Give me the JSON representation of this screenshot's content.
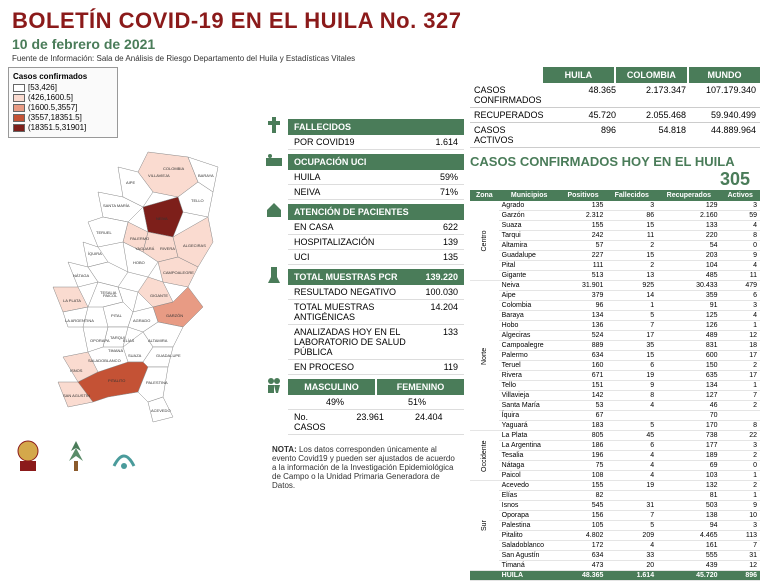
{
  "header": {
    "title": "BOLETÍN COVID-19 EN EL HUILA No. 327",
    "date": "10 de febrero de 2021",
    "source": "Fuente de Información: Sala de Análisis de Riesgo Departamento del Huila y Estadísticas Vitales"
  },
  "legend": {
    "title": "Casos confirmados",
    "items": [
      {
        "label": "[53,426]",
        "color": "#ffffff"
      },
      {
        "label": "(426,1600.5]",
        "color": "#fadbd0"
      },
      {
        "label": "(1600.5,3557]",
        "color": "#e89b84"
      },
      {
        "label": "(3557,18351.5]",
        "color": "#c45235"
      },
      {
        "label": "(18351.5,31901]",
        "color": "#7d1f1a"
      }
    ]
  },
  "top_stats": {
    "headers": [
      "HUILA",
      "COLOMBIA",
      "MUNDO"
    ],
    "rows": [
      {
        "label": "CASOS CONFIRMADOS",
        "vals": [
          "48.365",
          "2.173.347",
          "107.179.340"
        ]
      },
      {
        "label": "RECUPERADOS",
        "vals": [
          "45.720",
          "2.055.468",
          "59.940.499"
        ]
      },
      {
        "label": "CASOS ACTIVOS",
        "vals": [
          "896",
          "54.818",
          "44.889.964"
        ]
      }
    ]
  },
  "confirmed_today": {
    "label": "CASOS CONFIRMADOS HOY EN EL HUILA",
    "value": "305"
  },
  "fallecidos": {
    "header": "FALLECIDOS",
    "rows": [
      {
        "label": "POR COVID19",
        "val": "1.614"
      }
    ]
  },
  "uci": {
    "header": "OCUPACIÓN UCI",
    "rows": [
      {
        "label": "HUILA",
        "val": "59%"
      },
      {
        "label": "NEIVA",
        "val": "71%"
      }
    ]
  },
  "atencion": {
    "header": "ATENCIÓN DE PACIENTES",
    "rows": [
      {
        "label": "EN CASA",
        "val": "622"
      },
      {
        "label": "HOSPITALIZACIÓN",
        "val": "139"
      },
      {
        "label": "UCI",
        "val": "135"
      }
    ]
  },
  "pcr": {
    "header": "TOTAL MUESTRAS PCR",
    "header_val": "139.220",
    "rows": [
      {
        "label": "RESULTADO NEGATIVO",
        "val": "100.030"
      },
      {
        "label": "TOTAL MUESTRAS ANTIGÉNICAS",
        "val": "14.204"
      },
      {
        "label": "ANALIZADAS HOY EN EL LABORATORIO DE SALUD PÚBLICA",
        "val": "133"
      },
      {
        "label": "EN PROCESO",
        "val": "119"
      }
    ]
  },
  "gender": {
    "headers": [
      "MASCULINO",
      "FEMENINO"
    ],
    "pct": [
      "49%",
      "51%"
    ],
    "label": "No. CASOS",
    "vals": [
      "23.961",
      "24.404"
    ]
  },
  "muni": {
    "headers": [
      "Zona",
      "Municipios",
      "Positivos",
      "Fallecidos",
      "Recuperados",
      "Activos"
    ],
    "zones": [
      {
        "name": "Centro",
        "rows": [
          {
            "m": "Agrado",
            "p": "135",
            "f": "3",
            "r": "129",
            "a": "3"
          },
          {
            "m": "Garzón",
            "p": "2.312",
            "f": "86",
            "r": "2.160",
            "a": "59"
          },
          {
            "m": "Suaza",
            "p": "155",
            "f": "15",
            "r": "133",
            "a": "4"
          },
          {
            "m": "Tarqui",
            "p": "242",
            "f": "11",
            "r": "220",
            "a": "8"
          },
          {
            "m": "Altamira",
            "p": "57",
            "f": "2",
            "r": "54",
            "a": "0"
          },
          {
            "m": "Guadalupe",
            "p": "227",
            "f": "15",
            "r": "203",
            "a": "9"
          },
          {
            "m": "Pital",
            "p": "111",
            "f": "2",
            "r": "104",
            "a": "4"
          },
          {
            "m": "Gigante",
            "p": "513",
            "f": "13",
            "r": "485",
            "a": "11"
          }
        ]
      },
      {
        "name": "Norte",
        "rows": [
          {
            "m": "Neiva",
            "p": "31.901",
            "f": "925",
            "r": "30.433",
            "a": "479"
          },
          {
            "m": "Aipe",
            "p": "379",
            "f": "14",
            "r": "359",
            "a": "6"
          },
          {
            "m": "Colombia",
            "p": "96",
            "f": "1",
            "r": "91",
            "a": "3"
          },
          {
            "m": "Baraya",
            "p": "134",
            "f": "5",
            "r": "125",
            "a": "4"
          },
          {
            "m": "Hobo",
            "p": "136",
            "f": "7",
            "r": "126",
            "a": "1"
          },
          {
            "m": "Algeciras",
            "p": "524",
            "f": "17",
            "r": "489",
            "a": "12"
          },
          {
            "m": "Campoalegre",
            "p": "889",
            "f": "35",
            "r": "831",
            "a": "18"
          },
          {
            "m": "Palermo",
            "p": "634",
            "f": "15",
            "r": "600",
            "a": "17"
          },
          {
            "m": "Teruel",
            "p": "160",
            "f": "6",
            "r": "150",
            "a": "2"
          },
          {
            "m": "Rivera",
            "p": "671",
            "f": "19",
            "r": "635",
            "a": "17"
          },
          {
            "m": "Tello",
            "p": "151",
            "f": "9",
            "r": "134",
            "a": "1"
          },
          {
            "m": "Villavieja",
            "p": "142",
            "f": "8",
            "r": "127",
            "a": "7"
          },
          {
            "m": "Santa María",
            "p": "53",
            "f": "4",
            "r": "46",
            "a": "2"
          },
          {
            "m": "Íquira",
            "p": "67",
            "f": "",
            "r": "70",
            "a": ""
          },
          {
            "m": "Yaguará",
            "p": "183",
            "f": "5",
            "r": "170",
            "a": "8"
          }
        ]
      },
      {
        "name": "Occidente",
        "rows": [
          {
            "m": "La Plata",
            "p": "805",
            "f": "45",
            "r": "738",
            "a": "22"
          },
          {
            "m": "La Argentina",
            "p": "186",
            "f": "6",
            "r": "177",
            "a": "3"
          },
          {
            "m": "Tesalia",
            "p": "196",
            "f": "4",
            "r": "189",
            "a": "2"
          },
          {
            "m": "Nátaga",
            "p": "75",
            "f": "4",
            "r": "69",
            "a": "0"
          },
          {
            "m": "Paicol",
            "p": "108",
            "f": "4",
            "r": "103",
            "a": "1"
          }
        ]
      },
      {
        "name": "Sur",
        "rows": [
          {
            "m": "Acevedo",
            "p": "155",
            "f": "19",
            "r": "132",
            "a": "2"
          },
          {
            "m": "Elías",
            "p": "82",
            "f": "",
            "r": "81",
            "a": "1"
          },
          {
            "m": "Isnos",
            "p": "545",
            "f": "31",
            "r": "503",
            "a": "9"
          },
          {
            "m": "Oporapa",
            "p": "156",
            "f": "7",
            "r": "138",
            "a": "10"
          },
          {
            "m": "Palestina",
            "p": "105",
            "f": "5",
            "r": "94",
            "a": "3"
          },
          {
            "m": "Pitalito",
            "p": "4.802",
            "f": "209",
            "r": "4.465",
            "a": "113"
          },
          {
            "m": "Saladoblanco",
            "p": "172",
            "f": "4",
            "r": "161",
            "a": "7"
          },
          {
            "m": "San Agustín",
            "p": "634",
            "f": "33",
            "r": "555",
            "a": "31"
          },
          {
            "m": "Timaná",
            "p": "473",
            "f": "20",
            "r": "439",
            "a": "12"
          }
        ]
      }
    ],
    "total": {
      "m": "HUILA",
      "p": "48.365",
      "f": "1.614",
      "r": "45.720",
      "a": "896"
    }
  },
  "note": {
    "label": "NOTA:",
    "text": "Los datos corresponden únicamente al evento Covid19 y pueden ser ajustados de acuerdo a la información de la Investigación Epidemiológica de Campo o la Unidad Primaria Generadora de Datos."
  },
  "map_labels": [
    "COLOMBIA",
    "BARAYA",
    "TELLO",
    "VILLAVIEJA",
    "AIPE",
    "NEIVA",
    "SANTA MARÍA",
    "PALERMO",
    "TERUEL",
    "ÍQUIRA",
    "YAGUARÁ",
    "RIVERA",
    "CAMPOALEGRE",
    "HOBO",
    "ALGECIRAS",
    "NÁTAGA",
    "TESALIA",
    "PAICOL",
    "GIGANTE",
    "LA PLATA",
    "LA ARGENTINA",
    "PITAL",
    "AGRADO",
    "GARZÓN",
    "TARQUI",
    "ALTAMIRA",
    "GUADALUPE",
    "SUAZA",
    "OPORAPA",
    "SALADOBLANCO",
    "ELÍAS",
    "TIMANÁ",
    "ISNOS",
    "SAN AGUSTÍN",
    "PITALITO",
    "PALESTINA",
    "ACEVEDO"
  ]
}
